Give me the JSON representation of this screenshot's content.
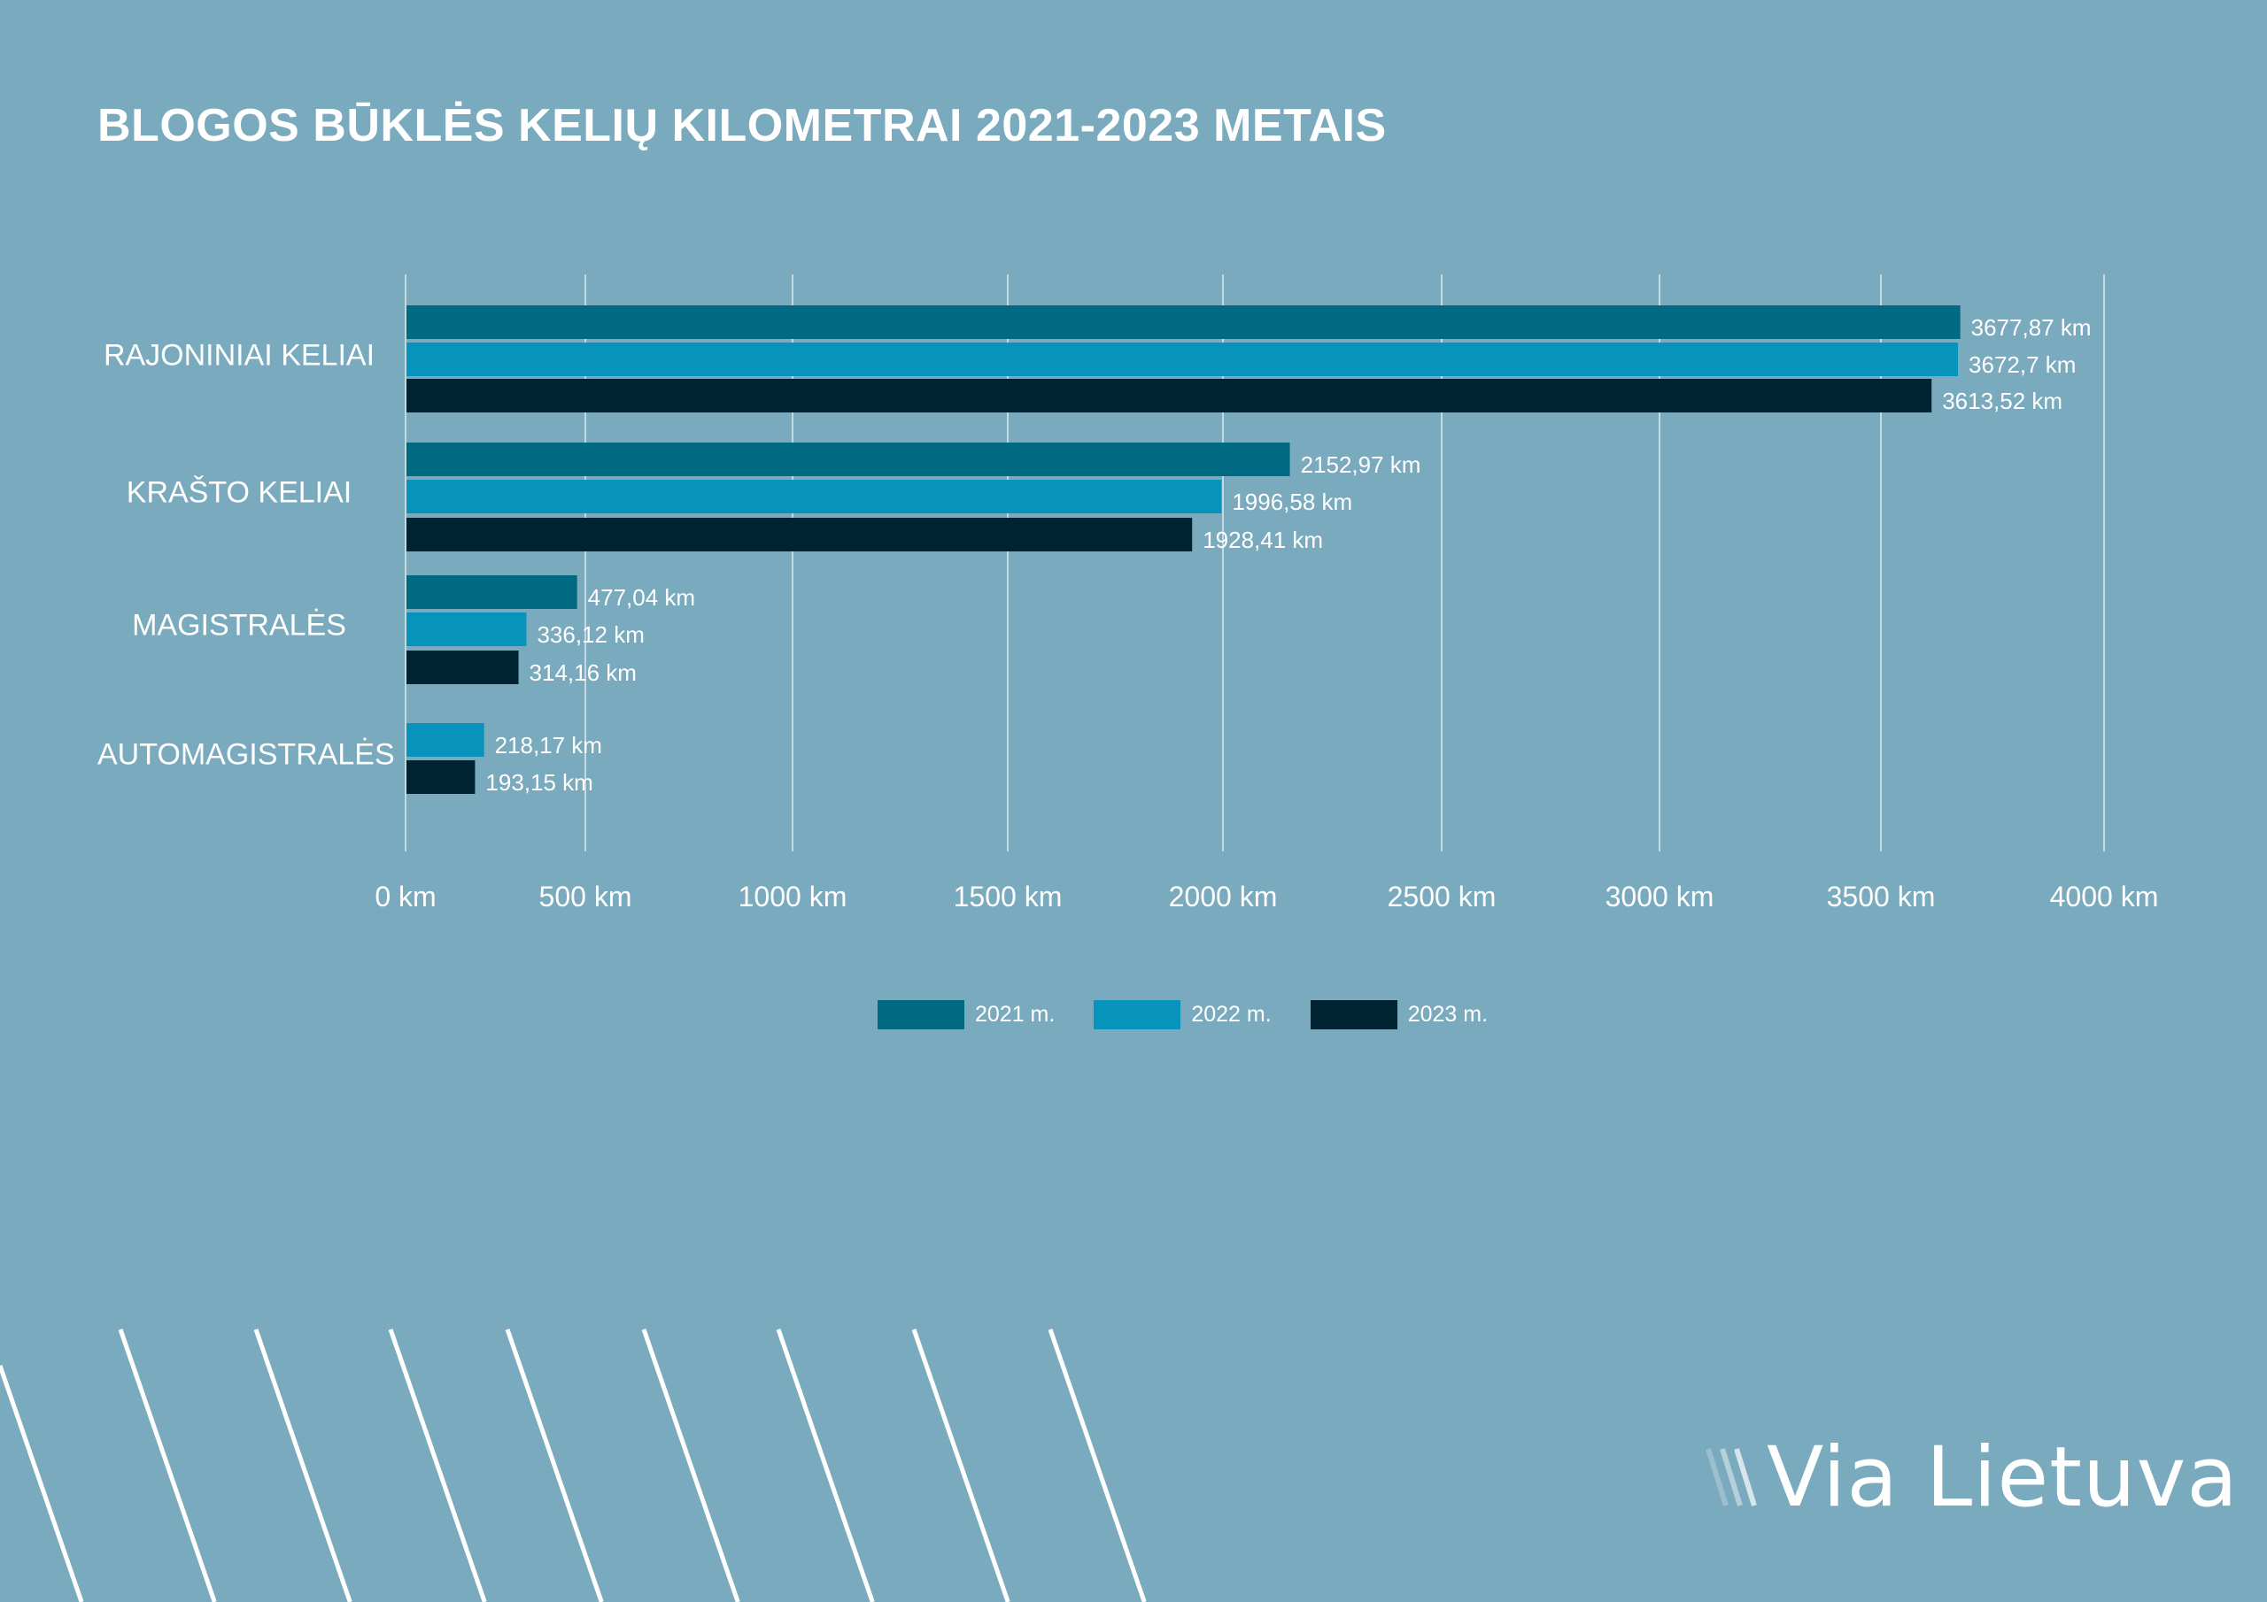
{
  "title": "BLOGOS BŪKLĖS KELIŲ KILOMETRAI 2021-2023 METAIS",
  "chart_data": {
    "type": "bar",
    "orientation": "horizontal",
    "title": "BLOGOS BŪKLĖS KELIŲ KILOMETRAI 2021-2023 METAIS",
    "categories": [
      "RAJONINIAI KELIAI",
      "KRAŠTO KELIAI",
      "MAGISTRALĖS",
      "AUTOMAGISTRALĖS"
    ],
    "series": [
      {
        "name": "2021 m.",
        "color": "#006A83",
        "values": [
          3677.87,
          2152.97,
          477.04,
          null
        ],
        "labels": [
          "3677,87 km",
          "2152,97 km",
          "477,04 km",
          null
        ]
      },
      {
        "name": "2022 m.",
        "color": "#0793BC",
        "values": [
          3672.7,
          1996.58,
          336.12,
          218.17
        ],
        "labels": [
          "3672,7 km",
          "1996,58 km",
          "336,12 km",
          "218,17 km"
        ]
      },
      {
        "name": "2023 m.",
        "color": "#002332",
        "values": [
          3613.52,
          1928.41,
          314.16,
          193.15
        ],
        "labels": [
          "3613,52 km",
          "1928,41 km",
          "314,16 km",
          "193,15 km"
        ]
      }
    ],
    "xticks": [
      0,
      500,
      1000,
      1500,
      2000,
      2500,
      3000,
      3500,
      4000
    ],
    "xtick_labels": [
      "0 km",
      "500 km",
      "1000 km",
      "1500 km",
      "2000 km",
      "2500 km",
      "3000 km",
      "3500  km",
      "4000 km"
    ],
    "xlim": [
      0,
      4000
    ],
    "grid": true,
    "legend": "bottom-center",
    "xlabel": "",
    "ylabel": ""
  },
  "logo": {
    "text": "Via Lietuva"
  }
}
